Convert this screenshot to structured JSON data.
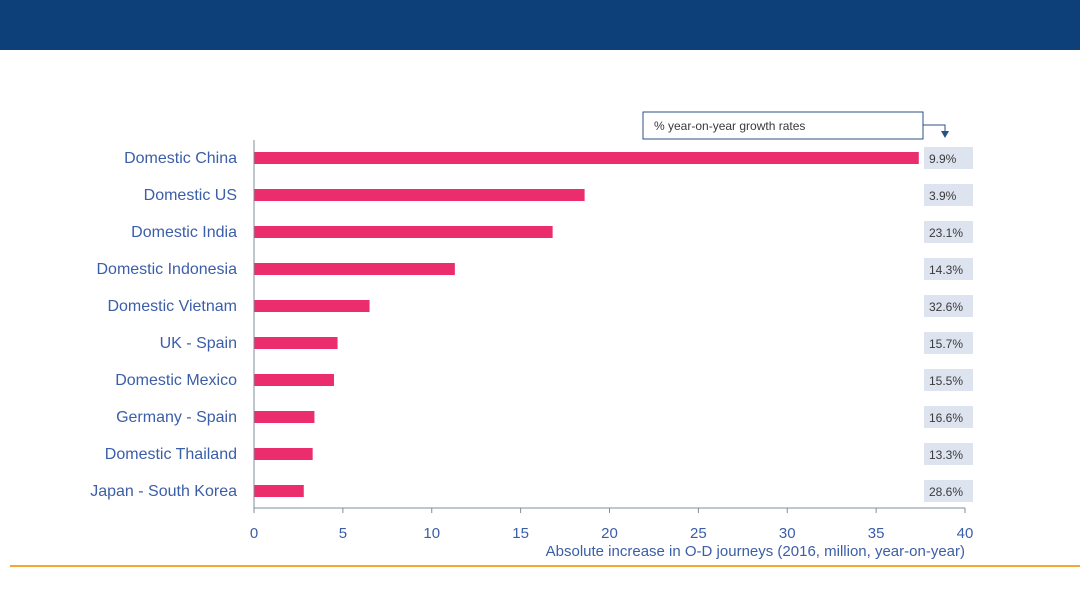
{
  "colors": {
    "header": "#0d3f78",
    "bar": "#ec2d6d",
    "axis_text": "#3b5ea8",
    "growth_bg": "#dde3ef",
    "footer_line": "#f0a830"
  },
  "legend": {
    "text": "% year-on-year growth rates"
  },
  "chart_data": {
    "type": "bar",
    "orientation": "horizontal",
    "title": "",
    "xlabel": "Absolute increase in O-D journeys (2016, million, year-on-year)",
    "ylabel": "",
    "xlim": [
      0,
      40
    ],
    "xticks": [
      0,
      5,
      10,
      15,
      20,
      25,
      30,
      35,
      40
    ],
    "categories": [
      "Domestic China",
      "Domestic US",
      "Domestic India",
      "Domestic Indonesia",
      "Domestic Vietnam",
      "UK - Spain",
      "Domestic Mexico",
      "Germany - Spain",
      "Domestic Thailand",
      "Japan - South Korea"
    ],
    "values": [
      37.4,
      18.6,
      16.8,
      11.3,
      6.5,
      4.7,
      4.5,
      3.4,
      3.3,
      2.8
    ],
    "growth_rates": [
      "9.9%",
      "3.9%",
      "23.1%",
      "14.3%",
      "32.6%",
      "15.7%",
      "15.5%",
      "16.6%",
      "13.3%",
      "28.6%"
    ]
  }
}
